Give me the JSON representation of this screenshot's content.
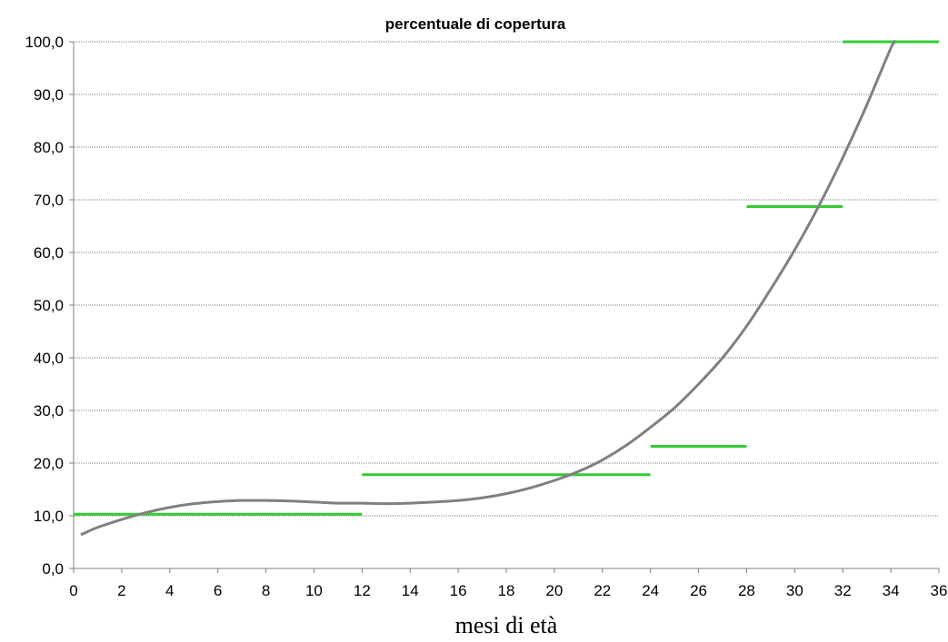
{
  "chart_data": {
    "type": "line",
    "title": "percentuale di copertura",
    "xlabel": "mesi di età",
    "ylabel": "",
    "xlim": [
      0,
      36
    ],
    "ylim": [
      0,
      100
    ],
    "x_ticks": [
      "0",
      "2",
      "4",
      "6",
      "8",
      "10",
      "12",
      "14",
      "16",
      "18",
      "20",
      "22",
      "24",
      "26",
      "28",
      "30",
      "32",
      "34",
      "36"
    ],
    "y_ticks": [
      "0,0",
      "10,0",
      "20,0",
      "30,0",
      "40,0",
      "50,0",
      "60,0",
      "70,0",
      "80,0",
      "90,0",
      "100,0"
    ],
    "grid": {
      "horizontal": true,
      "vertical": false
    },
    "series": [
      {
        "style": "step-segments",
        "color": "#33cc33",
        "segments": [
          {
            "x": [
              0,
              12
            ],
            "y": 10.3
          },
          {
            "x": [
              12,
              24
            ],
            "y": 17.8
          },
          {
            "x": [
              24,
              28
            ],
            "y": 23.2
          },
          {
            "x": [
              28,
              32
            ],
            "y": 68.7
          },
          {
            "x": [
              32,
              36
            ],
            "y": 100.0
          }
        ]
      },
      {
        "style": "curve",
        "color": "#808080",
        "x": [
          0.3,
          1,
          2,
          3,
          4,
          5,
          6,
          7,
          8,
          9,
          10,
          11,
          12,
          13,
          14,
          15,
          16,
          17,
          18,
          19,
          20,
          21,
          22,
          23,
          24,
          25,
          26,
          27,
          28,
          29,
          30,
          31,
          32,
          33,
          34,
          34.2
        ],
        "y": [
          6.4,
          7.8,
          9.3,
          10.6,
          11.6,
          12.3,
          12.7,
          12.9,
          12.9,
          12.8,
          12.6,
          12.4,
          12.4,
          12.3,
          12.4,
          12.6,
          12.9,
          13.4,
          14.2,
          15.3,
          16.7,
          18.4,
          20.6,
          23.4,
          26.8,
          30.5,
          35.0,
          40.0,
          46.0,
          53.0,
          60.5,
          68.8,
          78.0,
          88.0,
          98.8,
          100.0
        ]
      }
    ]
  }
}
